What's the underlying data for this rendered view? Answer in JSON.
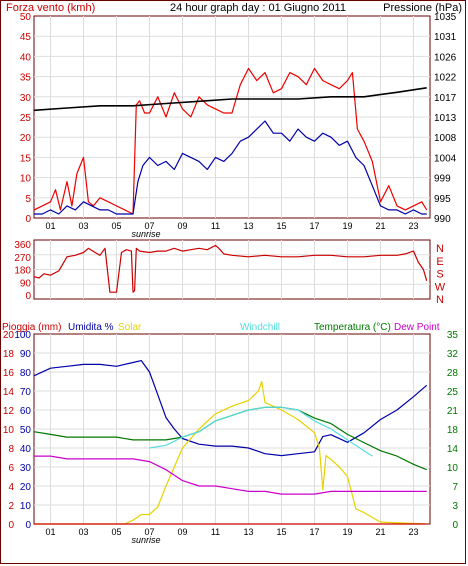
{
  "colors": {
    "outline": "#6b0000",
    "wind_axis": "#cc0000",
    "pressure_axis": "#000000",
    "gust": "#ee0000",
    "wind": "#0000aa",
    "pressure": "#000000",
    "direction": "#cc0000",
    "rain_axis": "#cc0000",
    "humidity": "#0000aa",
    "solar": "#e8d200",
    "windchill": "#55dddd",
    "temperature": "#007700",
    "dewpoint": "#cc00cc",
    "grid": "#dddddd"
  },
  "chart_data": [
    {
      "id": "wind_pressure",
      "type": "line",
      "title": "24 hour graph day : 01 Giugno 2011",
      "ylabel_left": "Forza vento (kmh)",
      "ylabel_right": "Pressione (hPa)",
      "ylim": [
        0,
        50
      ],
      "yticks": [
        "0",
        "5",
        "10",
        "15",
        "20",
        "25",
        "30",
        "35",
        "40",
        "45",
        "50"
      ],
      "ylim_right": [
        990,
        1035
      ],
      "yticks_right": [
        "990",
        "995",
        "999",
        "1004",
        "1008",
        "1013",
        "1017",
        "1022",
        "1026",
        "1031",
        "1035"
      ],
      "xlim": [
        0,
        24
      ],
      "xticks": [
        "01",
        "03",
        "05",
        "07",
        "09",
        "11",
        "13",
        "15",
        "17",
        "19",
        "21",
        "23"
      ],
      "x_annotation": "sunrise",
      "grid": true,
      "series": [
        {
          "key": "gust",
          "x": [
            0,
            0.5,
            1,
            1.3,
            1.6,
            2,
            2.3,
            2.6,
            3,
            3.3,
            3.6,
            4,
            4.5,
            5,
            5.5,
            6,
            6.2,
            6.4,
            6.7,
            7,
            7.5,
            8,
            8.5,
            9,
            9.5,
            10,
            10.5,
            11,
            11.5,
            12,
            12.5,
            13,
            13.5,
            14,
            14.5,
            15,
            15.5,
            16,
            16.5,
            17,
            17.5,
            18,
            18.5,
            19,
            19.3,
            19.6,
            20,
            20.5,
            21,
            21.5,
            22,
            22.5,
            23,
            23.5,
            23.8
          ],
          "values": [
            2,
            3,
            4,
            7,
            2,
            9,
            3,
            11,
            15,
            4,
            3,
            5,
            4,
            3,
            2,
            1,
            28,
            29,
            26,
            26,
            30,
            25,
            31,
            27,
            25,
            30,
            28,
            27,
            26,
            26,
            33,
            37,
            34,
            36,
            31,
            32,
            36,
            35,
            33,
            37,
            34,
            33,
            32,
            34,
            36,
            22,
            19,
            14,
            4,
            8,
            3,
            2,
            3,
            4,
            2
          ]
        },
        {
          "key": "wind",
          "x": [
            0,
            0.5,
            1,
            1.5,
            2,
            2.5,
            3,
            3.5,
            4,
            4.5,
            5,
            5.5,
            6,
            6.3,
            6.6,
            7,
            7.5,
            8,
            8.5,
            9,
            9.5,
            10,
            10.5,
            11,
            11.5,
            12,
            12.5,
            13,
            13.5,
            14,
            14.5,
            15,
            15.5,
            16,
            16.5,
            17,
            17.5,
            18,
            18.5,
            19,
            19.5,
            20,
            20.5,
            21,
            21.5,
            22,
            22.5,
            23,
            23.5,
            23.8
          ],
          "values": [
            1,
            1,
            2,
            1,
            3,
            2,
            4,
            3,
            2,
            2,
            1,
            1,
            1,
            9,
            13,
            15,
            13,
            14,
            12,
            16,
            15,
            14,
            12,
            15,
            14,
            16,
            19,
            20,
            22,
            24,
            21,
            21,
            19,
            22,
            20,
            19,
            21,
            20,
            18,
            19,
            15,
            13,
            8,
            3,
            2,
            2,
            1,
            2,
            1,
            1
          ]
        },
        {
          "key": "pressure",
          "axis": "right",
          "x": [
            0,
            2,
            4,
            6,
            8,
            10,
            12,
            14,
            16,
            18,
            20,
            22,
            23.8
          ],
          "values": [
            1014,
            1014.5,
            1015,
            1015,
            1015.5,
            1016,
            1016.5,
            1016.5,
            1016.5,
            1017,
            1017,
            1018,
            1019
          ]
        }
      ]
    },
    {
      "id": "wind_direction",
      "type": "line",
      "ylim": [
        0,
        360
      ],
      "yticks": [
        "0",
        "90",
        "180",
        "270",
        "360"
      ],
      "compass_labels": [
        "N",
        "W",
        "S",
        "E",
        "N"
      ],
      "xlim": [
        0,
        24
      ],
      "series": [
        {
          "key": "direction",
          "x": [
            0,
            0.3,
            0.6,
            1,
            1.5,
            2,
            2.5,
            3,
            3.3,
            3.7,
            4,
            4.3,
            4.6,
            5,
            5.3,
            5.6,
            5.9,
            6,
            6.1,
            6.2,
            6.4,
            7,
            7.5,
            8,
            8.5,
            9,
            9.5,
            10,
            10.5,
            11,
            11.2,
            11.5,
            12,
            13,
            14,
            15,
            16,
            17,
            18,
            19,
            20,
            21,
            21.5,
            22,
            22.5,
            23,
            23.3,
            23.6,
            23.8
          ],
          "values": [
            130,
            120,
            150,
            140,
            170,
            270,
            280,
            300,
            330,
            300,
            280,
            330,
            20,
            20,
            300,
            320,
            310,
            20,
            30,
            330,
            310,
            300,
            310,
            310,
            330,
            310,
            320,
            330,
            320,
            350,
            330,
            290,
            280,
            270,
            280,
            270,
            270,
            280,
            280,
            270,
            270,
            280,
            280,
            280,
            290,
            310,
            230,
            180,
            100
          ]
        }
      ]
    },
    {
      "id": "rain_humidity_temp",
      "type": "line",
      "legend": [
        "Pioggia (mm)",
        "Umidita %",
        "Solar",
        "Windchill",
        "Temperatura (°C)",
        "Dew Point"
      ],
      "ylabel_rain_ticks": [
        "0",
        "2",
        "4",
        "6",
        "8",
        "10",
        "12",
        "14",
        "16",
        "18",
        "20"
      ],
      "ylim_rain": [
        0,
        20
      ],
      "ylabel_hum_ticks": [
        "0",
        "10",
        "20",
        "30",
        "40",
        "50",
        "60",
        "70",
        "80",
        "90",
        "100"
      ],
      "ylim_hum": [
        0,
        100
      ],
      "ylabel_temp_ticks": [
        "0",
        "3",
        "7",
        "10",
        "14",
        "18",
        "21",
        "25",
        "28",
        "32",
        "35"
      ],
      "ylim_temp": [
        0,
        35
      ],
      "xlim": [
        0,
        24
      ],
      "xticks": [
        "01",
        "03",
        "05",
        "07",
        "09",
        "11",
        "13",
        "15",
        "17",
        "19",
        "21",
        "23"
      ],
      "x_annotation": "sunrise",
      "series": [
        {
          "key": "humidity",
          "axis": "hum",
          "x": [
            0,
            1,
            2,
            3,
            4,
            5,
            6,
            6.5,
            7,
            7.5,
            8,
            8.5,
            9,
            10,
            11,
            12,
            13,
            14,
            15,
            16,
            17,
            17.5,
            18,
            19,
            20,
            21,
            22,
            23,
            23.8
          ],
          "values": [
            78,
            82,
            83,
            84,
            84,
            83,
            85,
            86,
            80,
            68,
            56,
            50,
            45,
            42,
            41,
            41,
            40,
            37,
            36,
            37,
            38,
            46,
            47,
            43,
            48,
            55,
            60,
            67,
            73
          ]
        },
        {
          "key": "solar",
          "axis": "hum",
          "x": [
            0,
            5.5,
            6,
            6.5,
            7,
            7.5,
            8,
            8.5,
            9,
            10,
            11,
            12,
            13,
            13.6,
            13.8,
            14,
            15,
            16,
            17,
            17.3,
            17.5,
            17.7,
            18,
            18.5,
            19,
            19.5,
            20,
            21,
            23.8
          ],
          "values": [
            0,
            0,
            2,
            5,
            5,
            9,
            20,
            30,
            40,
            50,
            58,
            62,
            65,
            70,
            75,
            64,
            60,
            55,
            48,
            40,
            18,
            36,
            34,
            30,
            25,
            8,
            6,
            1,
            0
          ]
        },
        {
          "key": "temperature",
          "axis": "temp",
          "x": [
            0,
            1,
            2,
            3,
            4,
            5,
            6,
            7,
            8,
            9,
            10,
            11,
            12,
            13,
            14,
            15,
            16,
            17,
            18,
            19,
            20,
            21,
            22,
            23,
            23.8
          ],
          "values": [
            17,
            16.5,
            16,
            16,
            16,
            16,
            15.5,
            15.5,
            15.5,
            16,
            17,
            19,
            20,
            21,
            21.5,
            21.5,
            21,
            19.5,
            18.5,
            16.5,
            15,
            13.5,
            12.5,
            11,
            10
          ]
        },
        {
          "key": "windchill",
          "axis": "temp",
          "x": [
            7,
            8,
            9,
            10,
            11,
            12,
            13,
            14,
            15,
            16,
            17,
            18,
            19,
            20,
            20.5
          ],
          "values": [
            14,
            14.5,
            16,
            17,
            19,
            20,
            21,
            21.5,
            21.5,
            21,
            19,
            17.5,
            15.5,
            13.5,
            12.5
          ]
        },
        {
          "key": "dewpoint",
          "axis": "temp",
          "x": [
            0,
            1,
            2,
            3,
            4,
            5,
            6,
            7,
            8,
            9,
            10,
            11,
            12,
            13,
            14,
            15,
            16,
            17,
            18,
            19,
            20,
            21,
            22,
            23,
            23.8
          ],
          "values": [
            12.5,
            12.5,
            12,
            12,
            12,
            12,
            12,
            11.5,
            10,
            8,
            7,
            7,
            6.5,
            6,
            6,
            5.5,
            5.5,
            5.5,
            6,
            6,
            6,
            6,
            6,
            6,
            6
          ]
        },
        {
          "key": "rain",
          "axis": "rain",
          "x": [
            0,
            23.8
          ],
          "values": [
            0,
            0
          ]
        }
      ]
    }
  ]
}
